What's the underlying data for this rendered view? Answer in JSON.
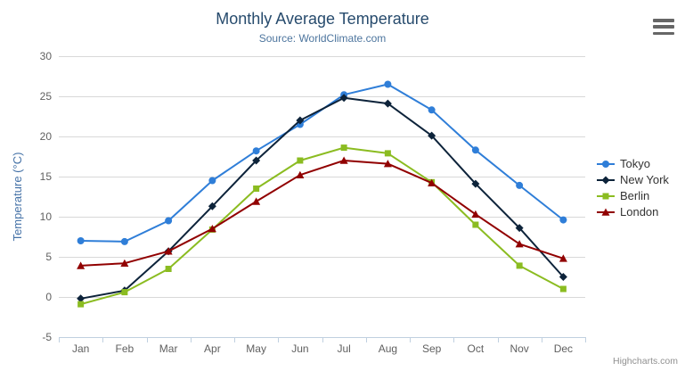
{
  "chart_data": {
    "type": "line",
    "title": "Monthly Average Temperature",
    "subtitle": "Source: WorldClimate.com",
    "categories": [
      "Jan",
      "Feb",
      "Mar",
      "Apr",
      "May",
      "Jun",
      "Jul",
      "Aug",
      "Sep",
      "Oct",
      "Nov",
      "Dec"
    ],
    "xlabel": "",
    "ylabel": "Temperature (°C)",
    "ylim": [
      -5,
      30
    ],
    "yticks": [
      -5,
      0,
      5,
      10,
      15,
      20,
      25,
      30
    ],
    "grid": true,
    "legend_position": "right",
    "series": [
      {
        "name": "Tokyo",
        "color": "#2f7ed8",
        "marker": "circle",
        "values": [
          7.0,
          6.9,
          9.5,
          14.5,
          18.2,
          21.5,
          25.2,
          26.5,
          23.3,
          18.3,
          13.9,
          9.6
        ]
      },
      {
        "name": "New York",
        "color": "#0d233a",
        "marker": "diamond",
        "values": [
          -0.2,
          0.8,
          5.7,
          11.3,
          17.0,
          22.0,
          24.8,
          24.1,
          20.1,
          14.1,
          8.6,
          2.5
        ]
      },
      {
        "name": "Berlin",
        "color": "#8bbc21",
        "marker": "square",
        "values": [
          -0.9,
          0.6,
          3.5,
          8.4,
          13.5,
          17.0,
          18.6,
          17.9,
          14.3,
          9.0,
          3.9,
          1.0
        ]
      },
      {
        "name": "London",
        "color": "#910000",
        "marker": "triangle",
        "values": [
          3.9,
          4.2,
          5.7,
          8.5,
          11.9,
          15.2,
          17.0,
          16.6,
          14.2,
          10.3,
          6.6,
          4.8
        ]
      }
    ],
    "credits": "Highcharts.com",
    "styles": {
      "grid_color": "#d8d8d8",
      "axis_line_color": "#c0d0e0",
      "tick_label_color": "#606060",
      "axis_title_color": "#4572a7",
      "title_color": "#274b6d",
      "subtitle_color": "#4d759e",
      "legend_text_color": "#333333",
      "credits_color": "#909090"
    }
  }
}
